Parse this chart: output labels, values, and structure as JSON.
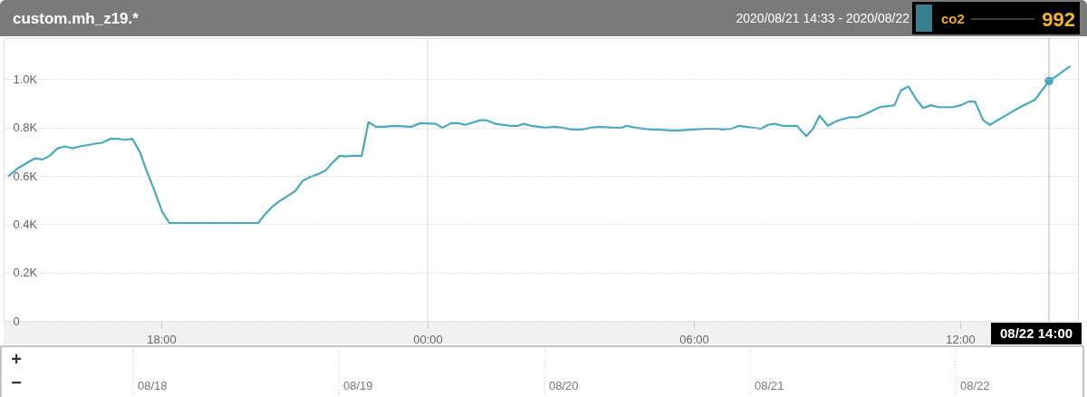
{
  "chart_data": {
    "type": "line",
    "title": "custom.mh_z19.*",
    "subtitle": "2020/08/21 14:33 - 2020/08/22",
    "x": [
      "2020-08-21T14:33",
      "2020-08-21T14:47",
      "2020-08-21T15:02",
      "2020-08-21T15:09",
      "2020-08-21T15:20",
      "2020-08-21T15:29",
      "2020-08-21T15:40",
      "2020-08-21T15:50",
      "2020-08-21T16:00",
      "2020-08-21T16:10",
      "2020-08-21T16:31",
      "2020-08-21T16:40",
      "2020-08-21T16:51",
      "2020-08-21T17:01",
      "2020-08-21T17:10",
      "2020-08-21T17:21",
      "2020-08-21T17:31",
      "2020-08-21T17:41",
      "2020-08-21T17:52",
      "2020-08-21T18:01",
      "2020-08-21T18:11",
      "2020-08-21T20:11",
      "2020-08-21T20:20",
      "2020-08-21T20:31",
      "2020-08-21T20:41",
      "2020-08-21T20:51",
      "2020-08-21T21:01",
      "2020-08-21T21:11",
      "2020-08-21T21:21",
      "2020-08-21T21:31",
      "2020-08-21T21:42",
      "2020-08-21T21:52",
      "2020-08-21T22:01",
      "2020-08-21T22:10",
      "2020-08-21T22:19",
      "2020-08-21T22:31",
      "2020-08-21T22:40",
      "2020-08-21T22:50",
      "2020-08-21T23:02",
      "2020-08-21T23:14",
      "2020-08-21T23:38",
      "2020-08-21T23:50",
      "2020-08-22T00:11",
      "2020-08-22T00:20",
      "2020-08-22T00:32",
      "2020-08-22T00:41",
      "2020-08-22T00:51",
      "2020-08-22T01:11",
      "2020-08-22T01:20",
      "2020-08-22T01:32",
      "2020-08-22T01:52",
      "2020-08-22T02:02",
      "2020-08-22T02:10",
      "2020-08-22T02:20",
      "2020-08-22T02:40",
      "2020-08-22T02:51",
      "2020-08-22T03:01",
      "2020-08-22T03:16",
      "2020-08-22T03:28",
      "2020-08-22T03:41",
      "2020-08-22T03:53",
      "2020-08-22T04:10",
      "2020-08-22T04:22",
      "2020-08-22T04:29",
      "2020-08-22T04:41",
      "2020-08-22T05:02",
      "2020-08-22T05:10",
      "2020-08-22T05:29",
      "2020-08-22T05:42",
      "2020-08-22T05:59",
      "2020-08-22T06:18",
      "2020-08-22T06:31",
      "2020-08-22T06:39",
      "2020-08-22T06:51",
      "2020-08-22T07:01",
      "2020-08-22T07:31",
      "2020-08-22T07:40",
      "2020-08-22T07:49",
      "2020-08-22T08:00",
      "2020-08-22T08:19",
      "2020-08-22T08:32",
      "2020-08-22T08:41",
      "2020-08-22T08:50",
      "2020-08-22T09:01",
      "2020-08-22T09:10",
      "2020-08-22T09:20",
      "2020-08-22T09:31",
      "2020-08-22T09:41",
      "2020-08-22T09:50",
      "2020-08-22T10:01",
      "2020-08-22T10:11",
      "2020-08-22T10:31",
      "2020-08-22T10:40",
      "2020-08-22T10:50",
      "2020-08-22T11:01",
      "2020-08-22T11:10",
      "2020-08-22T11:20",
      "2020-08-22T11:31",
      "2020-08-22T11:50",
      "2020-08-22T12:01",
      "2020-08-22T12:11",
      "2020-08-22T12:20",
      "2020-08-22T12:31",
      "2020-08-22T12:40",
      "2020-08-22T13:01",
      "2020-08-22T13:21",
      "2020-08-22T13:41",
      "2020-08-22T14:00",
      "2020-08-22T14:11",
      "2020-08-22T14:22",
      "2020-08-22T14:29"
    ],
    "series": [
      {
        "name": "co2",
        "color": "#4aa8bf",
        "values": [
          598,
          633,
          660,
          672,
          668,
          683,
          714,
          722,
          714,
          722,
          733,
          737,
          753,
          753,
          749,
          753,
          699,
          614,
          529,
          452,
          405,
          405,
          440,
          475,
          498,
          517,
          537,
          579,
          595,
          606,
          622,
          656,
          683,
          680,
          683,
          683,
          822,
          803,
          803,
          807,
          803,
          818,
          815,
          799,
          818,
          818,
          811,
          830,
          830,
          815,
          807,
          807,
          815,
          807,
          799,
          803,
          799,
          792,
          792,
          799,
          803,
          799,
          799,
          807,
          799,
          792,
          792,
          788,
          788,
          792,
          795,
          795,
          792,
          795,
          807,
          795,
          811,
          815,
          807,
          807,
          764,
          795,
          849,
          807,
          822,
          834,
          842,
          842,
          853,
          869,
          884,
          892,
          954,
          969,
          915,
          880,
          892,
          884,
          884,
          892,
          907,
          907,
          830,
          811,
          849,
          884,
          915,
          992,
          1015,
          1039,
          1054
        ]
      }
    ],
    "xlim": [
      "2020-08-21T14:33",
      "2020-08-22T14:33"
    ],
    "xticks": [
      {
        "value": "2020-08-21T18:00",
        "label": "18:00"
      },
      {
        "value": "2020-08-22T00:00",
        "label": "00:00"
      },
      {
        "value": "2020-08-22T06:00",
        "label": "06:00"
      },
      {
        "value": "2020-08-22T12:00",
        "label": "12:00"
      }
    ],
    "ylim": [
      0,
      1170
    ],
    "yticks": [
      0,
      {
        "value": 200,
        "label": "0.2K"
      },
      {
        "value": 400,
        "label": "0.4K"
      },
      {
        "value": 600,
        "label": "0.6K"
      },
      {
        "value": 800,
        "label": "0.8K"
      },
      {
        "value": 1000,
        "label": "1.0K"
      }
    ],
    "grid": "y",
    "legend": "top right",
    "marker": "none",
    "line_style": "solid",
    "ref_lines": [
      {
        "axis": "x",
        "value": "2020-08-22T00:00",
        "label": null,
        "color": "#d9d9d9"
      },
      {
        "axis": "x",
        "value": "2020-08-22T14:00",
        "label": "08/22 14:00",
        "color": "#b0b0b0"
      }
    ],
    "annotations": [
      {
        "text": "992",
        "x": "2020-08-22T14:00",
        "y": 992
      },
      "+",
      "−",
      "08/18",
      "08/19",
      "08/20",
      "08/21",
      "08/22"
    ]
  }
}
